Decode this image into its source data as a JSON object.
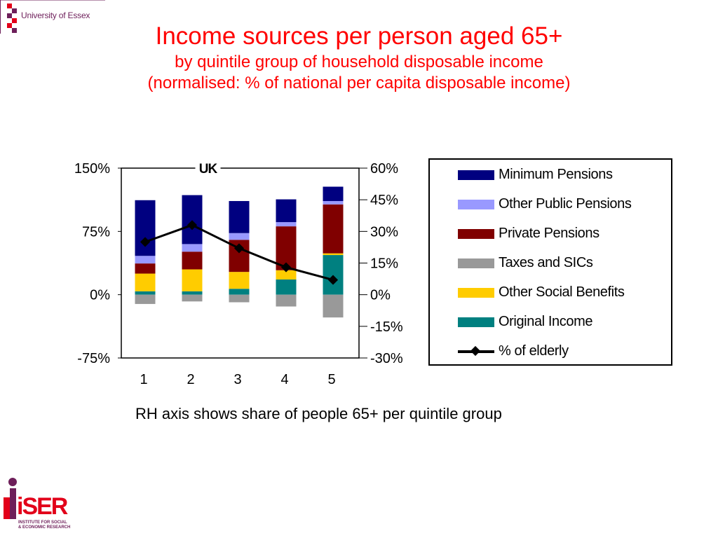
{
  "header": {
    "university_logo_text": "University of Essex",
    "title": "Income sources per person aged 65+",
    "subtitle_line1": "by quintile group of household disposable income",
    "subtitle_line2": "(normalised: % of national per capita disposable income)"
  },
  "note": "RH axis shows share of people 65+ per quintile group",
  "footer_logo": {
    "name": "iSER",
    "caption_line1": "INSTITUTE FOR SOCIAL",
    "caption_line2": "& ECONOMIC RESEARCH"
  },
  "chart_data": {
    "type": "bar",
    "stacked": true,
    "title": "UK",
    "xlabel": "",
    "ylabel": "",
    "categories": [
      "1",
      "2",
      "3",
      "4",
      "5"
    ],
    "ylim": [
      -75,
      150
    ],
    "y_ticks": [
      "150%",
      "75%",
      "0%",
      "-75%"
    ],
    "y2lim": [
      -30,
      60
    ],
    "y2_ticks": [
      "60%",
      "45%",
      "30%",
      "15%",
      "0%",
      "-15%",
      "-30%"
    ],
    "grid": false,
    "legend_position": "right",
    "series": [
      {
        "name": "Minimum Pensions",
        "color": "#000080",
        "values": [
          66,
          58,
          38,
          27,
          17
        ]
      },
      {
        "name": "Other Public Pensions",
        "color": "#9999ff",
        "values": [
          9,
          9,
          8,
          5,
          4
        ]
      },
      {
        "name": "Private Pensions",
        "color": "#800000",
        "values": [
          12,
          21,
          38,
          52,
          58
        ]
      },
      {
        "name": "Taxes and SICs",
        "color": "#999999",
        "values": [
          -11,
          -8,
          -9,
          -14,
          -27
        ]
      },
      {
        "name": "Other Social Benefits",
        "color": "#ffcc00",
        "values": [
          21,
          26,
          20,
          11,
          2
        ]
      },
      {
        "name": "Original Income",
        "color": "#008080",
        "values": [
          4,
          4,
          7,
          18,
          47
        ]
      }
    ],
    "line_series": {
      "name": "% of elderly",
      "color": "#000000",
      "axis": "right",
      "values": [
        25,
        33,
        22,
        13,
        7
      ]
    }
  }
}
